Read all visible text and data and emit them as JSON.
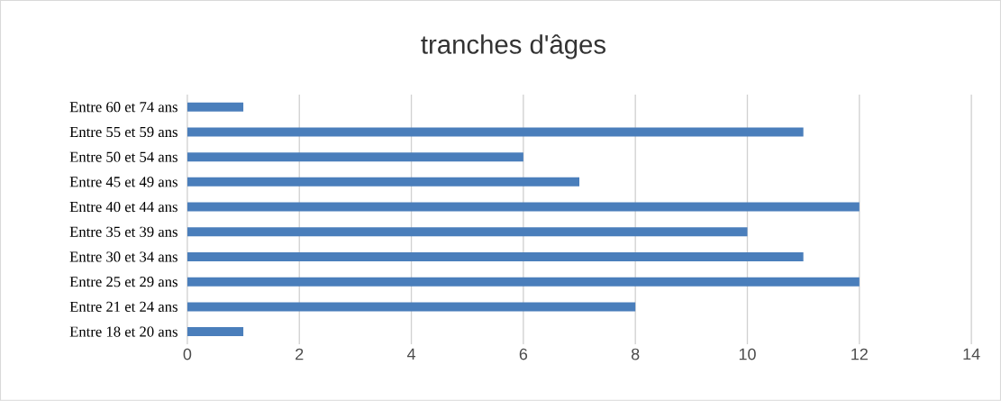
{
  "chart_data": {
    "type": "bar",
    "orientation": "horizontal",
    "title": "tranches d'âges",
    "categories": [
      "Entre 60 et 74 ans",
      "Entre 55 et 59 ans",
      "Entre 50 et 54 ans",
      "Entre 45 et 49 ans",
      "Entre 40 et 44 ans",
      "Entre 35 et 39 ans",
      "Entre 30 et 34 ans",
      "Entre 25 et 29 ans",
      "Entre 21 et 24 ans",
      "Entre 18 et 20 ans"
    ],
    "values": [
      1,
      11,
      6,
      7,
      12,
      10,
      11,
      12,
      8,
      1
    ],
    "color": "#4a7ebb",
    "xlim": [
      0,
      14
    ],
    "xticks": [
      0,
      2,
      4,
      6,
      8,
      10,
      12,
      14
    ],
    "grid": "x"
  }
}
